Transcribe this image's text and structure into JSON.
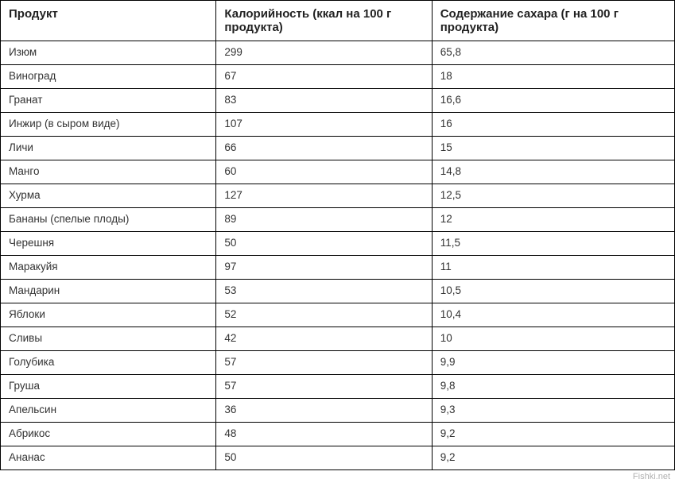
{
  "table": {
    "columns": [
      "Продукт",
      "Калорийность (ккал на 100 г продукта)",
      "Содержание сахара (г на 100 г продукта)"
    ],
    "col_widths_percent": [
      32,
      32,
      36
    ],
    "header_fontsize": 15,
    "cell_fontsize": 13.5,
    "border_color": "#000000",
    "background_color": "#ffffff",
    "text_color": "#333333",
    "rows": [
      [
        "Изюм",
        "299",
        "65,8"
      ],
      [
        "Виноград",
        "67",
        "18"
      ],
      [
        "Гранат",
        "83",
        "16,6"
      ],
      [
        "Инжир (в сыром виде)",
        "107",
        "16"
      ],
      [
        "Личи",
        "66",
        "15"
      ],
      [
        "Манго",
        "60",
        "14,8"
      ],
      [
        "Хурма",
        "127",
        "12,5"
      ],
      [
        "Бананы (спелые плоды)",
        "89",
        "12"
      ],
      [
        "Черешня",
        "50",
        "11,5"
      ],
      [
        "Маракуйя",
        "97",
        "11"
      ],
      [
        "Мандарин",
        "53",
        "10,5"
      ],
      [
        "Яблоки",
        "52",
        "10,4"
      ],
      [
        "Сливы",
        "42",
        "10"
      ],
      [
        "Голубика",
        "57",
        "9,9"
      ],
      [
        "Груша",
        "57",
        "9,8"
      ],
      [
        "Апельсин",
        "36",
        "9,3"
      ],
      [
        "Абрикос",
        "48",
        "9,2"
      ],
      [
        "Ананас",
        "50",
        "9,2"
      ]
    ]
  },
  "watermark": "Fishki.net"
}
